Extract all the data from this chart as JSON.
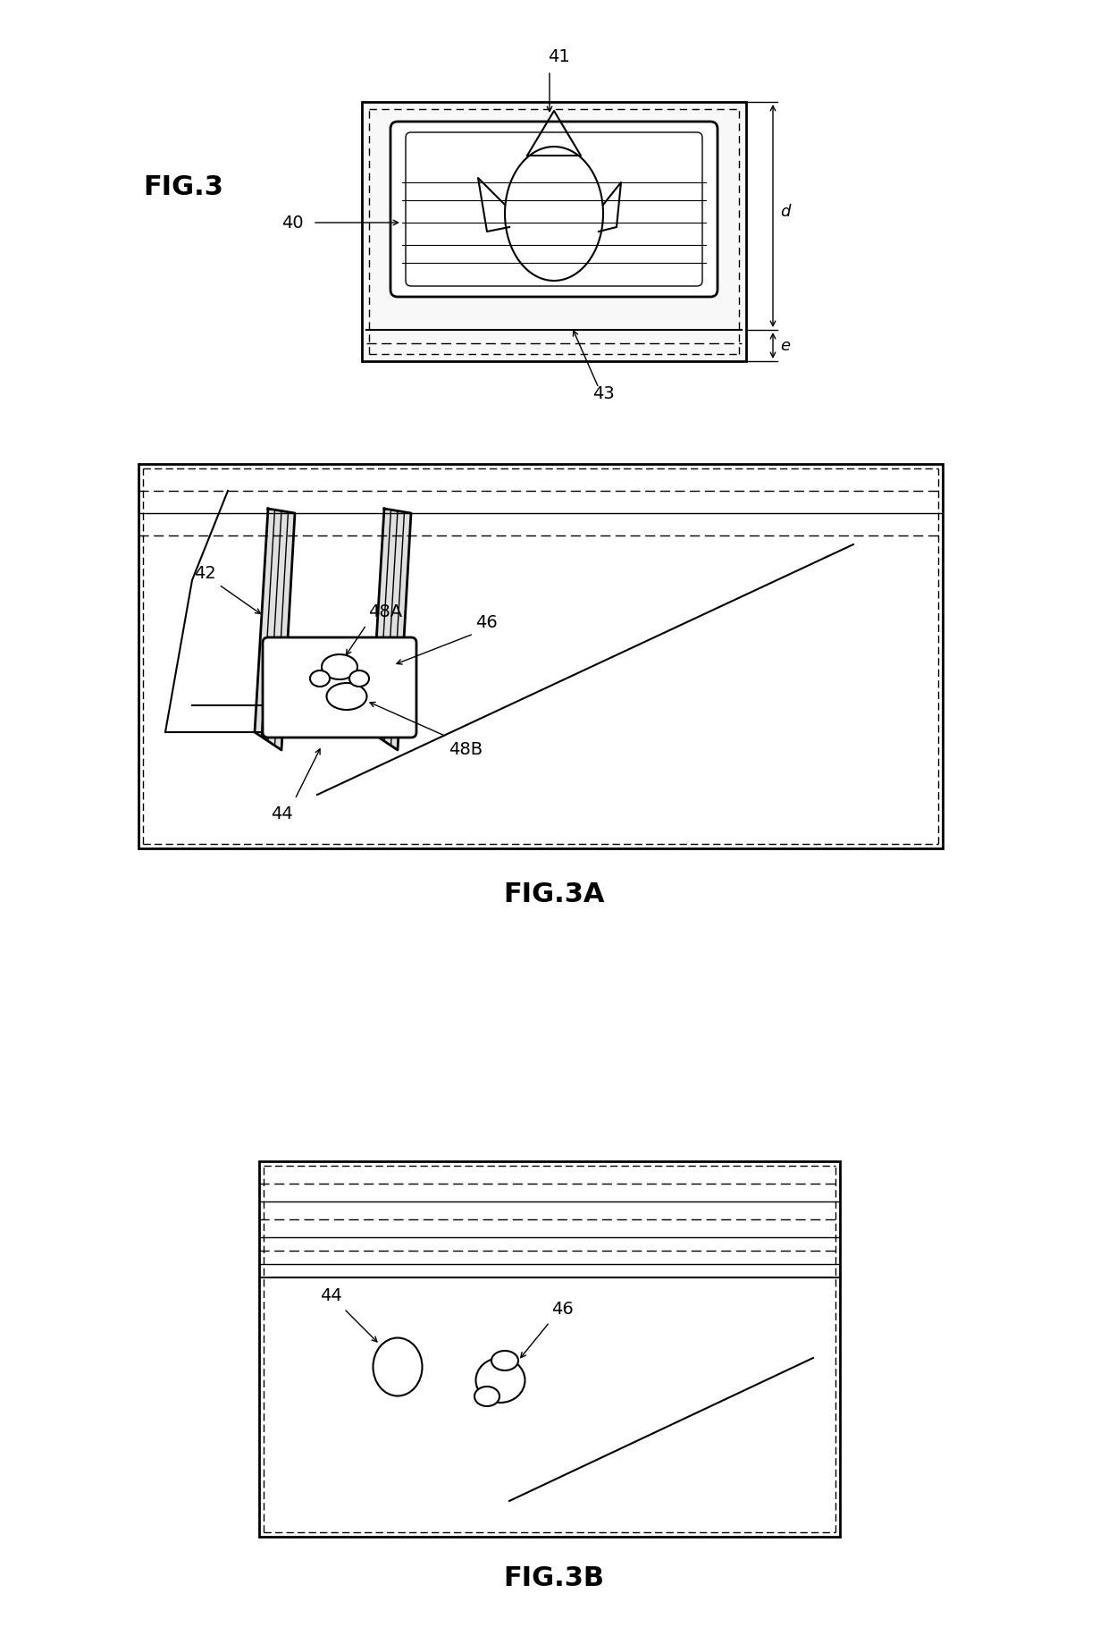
{
  "bg_color": "#ffffff",
  "line_color": "#000000",
  "fig_label_size": 22,
  "annotation_size": 14,
  "fig3_label": "FIG.3",
  "fig3a_label": "FIG.3A",
  "fig3b_label": "FIG.3B"
}
